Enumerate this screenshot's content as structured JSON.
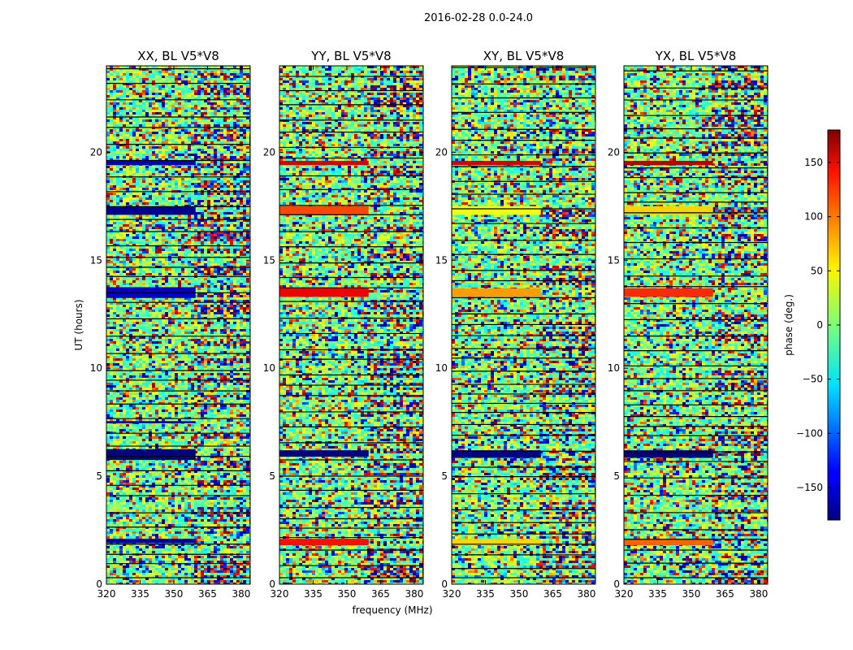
{
  "figure": {
    "suptitle": "2016-02-28 0.0-24.0"
  },
  "chart_data": {
    "type": "heatmap",
    "xlabel": "frequency (MHz)",
    "ylabel": "UT (hours)",
    "xlim": [
      320,
      384
    ],
    "ylim": [
      0,
      24
    ],
    "xticks": [
      320,
      335,
      350,
      365,
      380
    ],
    "xtick_labels": [
      "320",
      "335",
      "350",
      "365",
      "380"
    ],
    "yticks": [
      0,
      5,
      10,
      15,
      20
    ],
    "ytick_labels": [
      "0",
      "5",
      "10",
      "15",
      "20"
    ],
    "panels": [
      {
        "title": "XX, BL V5*V8",
        "bands": [
          {
            "t0": 5.75,
            "t1": 6.25,
            "phase": -180
          },
          {
            "t0": 13.25,
            "t1": 13.75,
            "phase": -155
          },
          {
            "t0": 17.1,
            "t1": 17.5,
            "phase": -175
          },
          {
            "t0": 1.9,
            "t1": 2.1,
            "phase": -170
          },
          {
            "t0": 7.45,
            "t1": 7.55,
            "phase": -170
          },
          {
            "t0": 19.4,
            "t1": 19.6,
            "phase": -160
          }
        ]
      },
      {
        "title": "YY, BL V5*V8",
        "bands": [
          {
            "t0": 5.9,
            "t1": 6.2,
            "phase": -180
          },
          {
            "t0": 13.3,
            "t1": 13.7,
            "phase": 140
          },
          {
            "t0": 17.1,
            "t1": 17.5,
            "phase": 110
          },
          {
            "t0": 1.8,
            "t1": 2.1,
            "phase": 130
          },
          {
            "t0": 19.4,
            "t1": 19.6,
            "phase": 150
          }
        ]
      },
      {
        "title": "XY, BL V5*V8",
        "bands": [
          {
            "t0": 5.85,
            "t1": 6.2,
            "phase": -180
          },
          {
            "t0": 13.3,
            "t1": 13.7,
            "phase": 80
          },
          {
            "t0": 17.1,
            "t1": 17.5,
            "phase": 40
          },
          {
            "t0": 1.8,
            "t1": 2.1,
            "phase": 60
          },
          {
            "t0": 19.4,
            "t1": 19.6,
            "phase": 150
          }
        ]
      },
      {
        "title": "YX, BL V5*V8",
        "bands": [
          {
            "t0": 5.85,
            "t1": 6.2,
            "phase": -180
          },
          {
            "t0": 13.3,
            "t1": 13.7,
            "phase": 120
          },
          {
            "t0": 17.1,
            "t1": 17.5,
            "phase": 60
          },
          {
            "t0": 1.8,
            "t1": 2.1,
            "phase": 100
          },
          {
            "t0": 19.4,
            "t1": 19.6,
            "phase": 160
          }
        ]
      }
    ],
    "colorbar": {
      "label": "phase (deg.)",
      "range": [
        -180,
        180
      ],
      "ticks": [
        150,
        100,
        50,
        0,
        -50,
        -100,
        -150
      ],
      "tick_labels": [
        "150",
        "100",
        "50",
        "0",
        "−50",
        "−100",
        "−150"
      ],
      "colormap": "jet"
    }
  }
}
